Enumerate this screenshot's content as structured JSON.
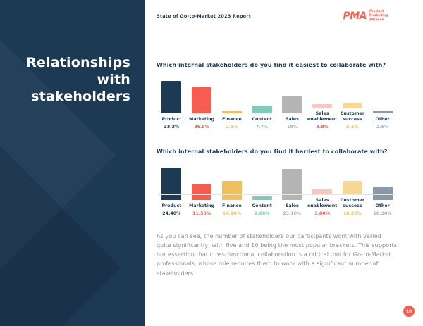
{
  "header": {
    "report_title": "State of Go-to-Market 2023 Report",
    "logo": {
      "mark": "PMA",
      "name": "Product Marketing Alliance"
    }
  },
  "sidebar": {
    "title": "Relationships with stakeholders"
  },
  "chart_data": [
    {
      "type": "bar",
      "title": "Which internal stakeholders do you find it easiest to collaborate with?",
      "categories": [
        "Product",
        "Marketing",
        "Finance",
        "Content",
        "Sales",
        "Sales enablement",
        "Customer success",
        "Other"
      ],
      "values": [
        33.3,
        26.9,
        2.6,
        7.7,
        18,
        3.8,
        5.1,
        2.6
      ],
      "value_labels": [
        "33.3%",
        "26.9%",
        "2.6%",
        "7.7%",
        "18%",
        "3.8%",
        "5.1%",
        "2.6%"
      ],
      "bar_colors": [
        "#1d3a54",
        "#f85c4e",
        "#eec15c",
        "#7ecbb6",
        "#b4b4b4",
        "#f9c6c0",
        "#f6d994",
        "#8b99a5"
      ],
      "label_colors": [
        "#1d3a54",
        "#f85c4e",
        "#eec15c",
        "#7ecbb6",
        "#b4b4b4",
        "#f85c4e",
        "#eebd55",
        "#a9b0b5"
      ],
      "xlabel": "",
      "ylabel": "",
      "ylim": [
        0,
        33.3
      ],
      "grid": false,
      "legend": "none"
    },
    {
      "type": "bar",
      "title": "Which internal stakeholders do you find it hardest to collaborate with?",
      "categories": [
        "Product",
        "Marketing",
        "Finance",
        "Content",
        "Sales",
        "Sales enablement",
        "Customer success",
        "Other"
      ],
      "values": [
        24.4,
        11.5,
        14.1,
        2.6,
        23.1,
        3.8,
        10.2,
        10.3
      ],
      "value_labels": [
        "24.40%",
        "11.50%",
        "14.10%",
        "2.60%",
        "23.10%",
        "3.80%",
        "10.20%",
        "10.30%"
      ],
      "bar_colors": [
        "#1d3a54",
        "#f85c4e",
        "#eec15c",
        "#7ecbb6",
        "#b4b4b4",
        "#f9c6c0",
        "#f6d994",
        "#8b99a5"
      ],
      "label_colors": [
        "#1d3a54",
        "#f85c4e",
        "#eec15c",
        "#7ecbb6",
        "#b4b4b4",
        "#f85c4e",
        "#eebd55",
        "#a9b0b5"
      ],
      "xlabel": "",
      "ylabel": "",
      "ylim": [
        0,
        24.4
      ],
      "grid": false,
      "legend": "none"
    }
  ],
  "main": {
    "paragraph": "As you can see, the number of stakeholders our participants work with varied quite significantly, with five and 10 being the most popular brackets. This supports our assertion that cross-functional collaboration is a critical tool for Go-to-Market professionals, whose role requires them to work with a significant number of stakeholders."
  },
  "footer": {
    "page_number": "18"
  },
  "colors": {
    "navy": "#1d3a54",
    "coral": "#f85c4e",
    "body_text": "#8e8e8e",
    "baseline": "#e4e4e4",
    "background": "#ffffff"
  }
}
